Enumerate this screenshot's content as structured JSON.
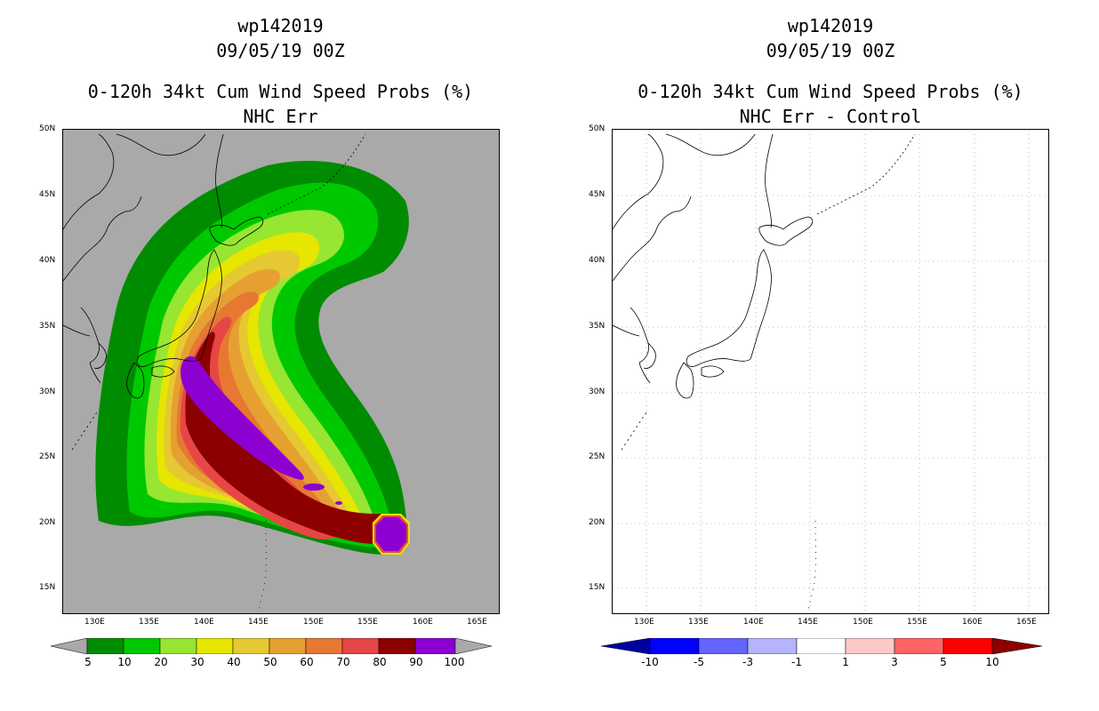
{
  "left_panel": {
    "title_line1": "wp142019",
    "title_line2": "09/05/19 00Z",
    "title_line3": "0-120h 34kt Cum Wind Speed Probs (%)",
    "title_line4": "NHC Err",
    "background_color": "#a9a9a9",
    "colorbar": {
      "labels": [
        "5",
        "10",
        "20",
        "30",
        "40",
        "50",
        "60",
        "70",
        "80",
        "90",
        "100"
      ],
      "colors": [
        "#008c00",
        "#00c800",
        "#00e600",
        "#96e632",
        "#e6e600",
        "#e6c832",
        "#e6a032",
        "#e67832",
        "#e64646",
        "#8c0000",
        "#8c00d2"
      ],
      "under_color": "#a9a9a9",
      "over_color": "#a9a9a9"
    }
  },
  "right_panel": {
    "title_line1": "wp142019",
    "title_line2": "09/05/19 00Z",
    "title_line3": "0-120h 34kt Cum Wind Speed Probs (%)",
    "title_line4": "NHC Err - Control",
    "background_color": "#ffffff",
    "colorbar": {
      "labels": [
        "-10",
        "-5",
        "-3",
        "-1",
        "1",
        "3",
        "5",
        "10"
      ],
      "colors": [
        "#0000ff",
        "#6464ff",
        "#b4b4ff",
        "#ffffff",
        "#ffc8c8",
        "#ff6464",
        "#ff0000"
      ],
      "under_color": "#0000a0",
      "over_color": "#8c0000"
    }
  },
  "axes": {
    "lon_labels": [
      "130E",
      "135E",
      "140E",
      "145E",
      "150E",
      "155E",
      "160E",
      "165E"
    ],
    "lat_labels": [
      "50N",
      "45N",
      "40N",
      "35N",
      "30N",
      "25N",
      "20N",
      "15N"
    ],
    "lon_values": [
      130,
      135,
      140,
      145,
      150,
      155,
      160,
      165
    ],
    "lat_values": [
      50,
      45,
      40,
      35,
      30,
      25,
      20,
      15
    ],
    "lon_range": [
      126,
      166
    ],
    "lat_range": [
      13,
      50
    ]
  }
}
